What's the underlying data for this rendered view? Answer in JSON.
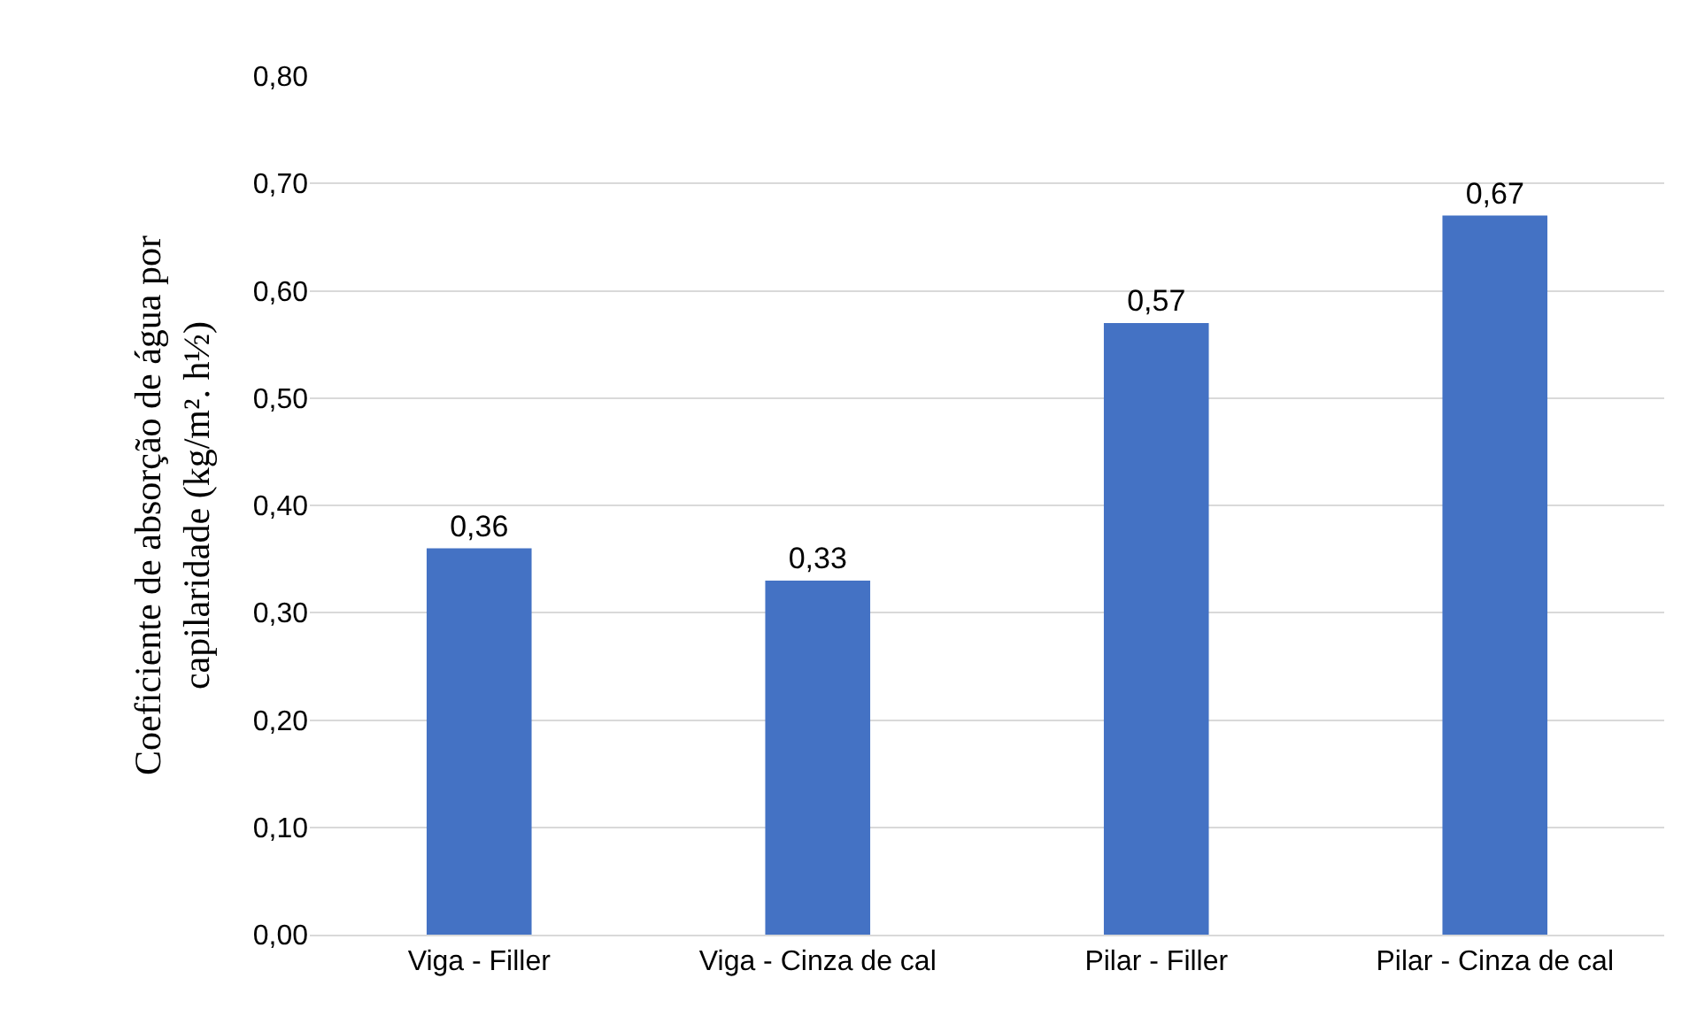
{
  "chart_data": {
    "type": "bar",
    "ylabel": "Coeficiente de absorção de água por\ncapilaridade (kg/m². h½)",
    "categories": [
      "Viga - Filler",
      "Viga - Cinza de cal",
      "Pilar - Filler",
      "Pilar - Cinza de cal"
    ],
    "values": [
      0.36,
      0.33,
      0.57,
      0.67
    ],
    "value_labels": [
      "0,36",
      "0,33",
      "0,57",
      "0,67"
    ],
    "color": "#4472c4",
    "ylim": [
      0,
      0.8
    ],
    "yticks": [
      {
        "value": 0,
        "label": "0,00"
      },
      {
        "value": 0.1,
        "label": "0,10"
      },
      {
        "value": 0.2,
        "label": "0,20"
      },
      {
        "value": 0.3,
        "label": "0,30"
      },
      {
        "value": 0.4,
        "label": "0,40"
      },
      {
        "value": 0.5,
        "label": "0,50"
      },
      {
        "value": 0.6,
        "label": "0,60"
      },
      {
        "value": 0.7,
        "label": "0,70"
      },
      {
        "value": 0.8,
        "label": "0,80"
      }
    ],
    "grid": "y"
  }
}
